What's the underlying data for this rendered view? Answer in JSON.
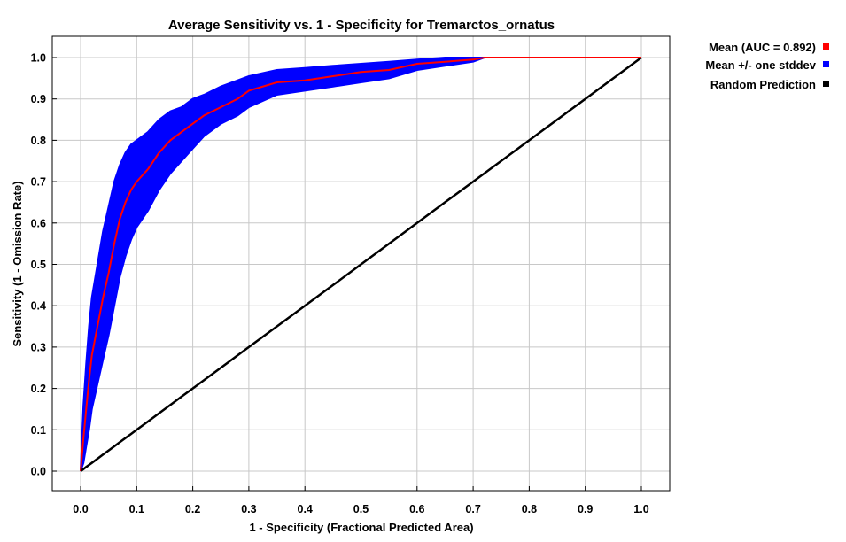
{
  "chart_data": {
    "type": "line",
    "title": "Average Sensitivity vs. 1 - Specificity for Tremarctos_ornatus",
    "xlabel": "1 - Specificity (Fractional Predicted Area)",
    "ylabel": "Sensitivity (1 - Omission Rate)",
    "xlim": [
      0.0,
      1.0
    ],
    "ylim": [
      0.0,
      1.0
    ],
    "xticks": [
      "0.0",
      "0.1",
      "0.2",
      "0.3",
      "0.4",
      "0.5",
      "0.6",
      "0.7",
      "0.8",
      "0.9",
      "1.0"
    ],
    "yticks": [
      "0.0",
      "0.1",
      "0.2",
      "0.3",
      "0.4",
      "0.5",
      "0.6",
      "0.7",
      "0.8",
      "0.9",
      "1.0"
    ],
    "grid": true,
    "legend_position": "right",
    "x": [
      0.0,
      0.005,
      0.01,
      0.015,
      0.02,
      0.03,
      0.04,
      0.05,
      0.06,
      0.07,
      0.08,
      0.09,
      0.1,
      0.12,
      0.14,
      0.16,
      0.18,
      0.2,
      0.22,
      0.25,
      0.28,
      0.3,
      0.35,
      0.4,
      0.45,
      0.5,
      0.55,
      0.6,
      0.65,
      0.7,
      0.72,
      0.8,
      0.9,
      1.0
    ],
    "series": [
      {
        "name": "Mean (AUC = 0.892)",
        "color": "#ff0000",
        "values": [
          0.0,
          0.08,
          0.15,
          0.22,
          0.28,
          0.35,
          0.42,
          0.48,
          0.55,
          0.61,
          0.65,
          0.68,
          0.7,
          0.73,
          0.77,
          0.8,
          0.82,
          0.84,
          0.86,
          0.88,
          0.9,
          0.92,
          0.94,
          0.945,
          0.955,
          0.965,
          0.97,
          0.985,
          0.99,
          0.995,
          1.0,
          1.0,
          1.0,
          1.0
        ]
      },
      {
        "name": "Mean +/- one stddev",
        "color": "#0000ff",
        "upper": [
          0.0,
          0.16,
          0.26,
          0.35,
          0.42,
          0.5,
          0.58,
          0.64,
          0.7,
          0.74,
          0.77,
          0.79,
          0.8,
          0.82,
          0.85,
          0.87,
          0.88,
          0.9,
          0.91,
          0.93,
          0.945,
          0.955,
          0.97,
          0.975,
          0.98,
          0.985,
          0.99,
          0.995,
          1.0,
          1.0,
          1.0,
          1.0,
          1.0,
          1.0
        ],
        "lower": [
          0.0,
          0.02,
          0.06,
          0.1,
          0.15,
          0.21,
          0.27,
          0.33,
          0.4,
          0.47,
          0.52,
          0.56,
          0.59,
          0.63,
          0.68,
          0.72,
          0.75,
          0.78,
          0.81,
          0.84,
          0.86,
          0.88,
          0.91,
          0.92,
          0.93,
          0.94,
          0.95,
          0.97,
          0.98,
          0.99,
          1.0,
          1.0,
          1.0,
          1.0
        ]
      },
      {
        "name": "Random Prediction",
        "color": "#000000",
        "values": [
          0.0,
          0.005,
          0.01,
          0.015,
          0.02,
          0.03,
          0.04,
          0.05,
          0.06,
          0.07,
          0.08,
          0.09,
          0.1,
          0.12,
          0.14,
          0.16,
          0.18,
          0.2,
          0.22,
          0.25,
          0.28,
          0.3,
          0.35,
          0.4,
          0.45,
          0.5,
          0.55,
          0.6,
          0.65,
          0.7,
          0.72,
          0.8,
          0.9,
          1.0
        ]
      }
    ]
  }
}
